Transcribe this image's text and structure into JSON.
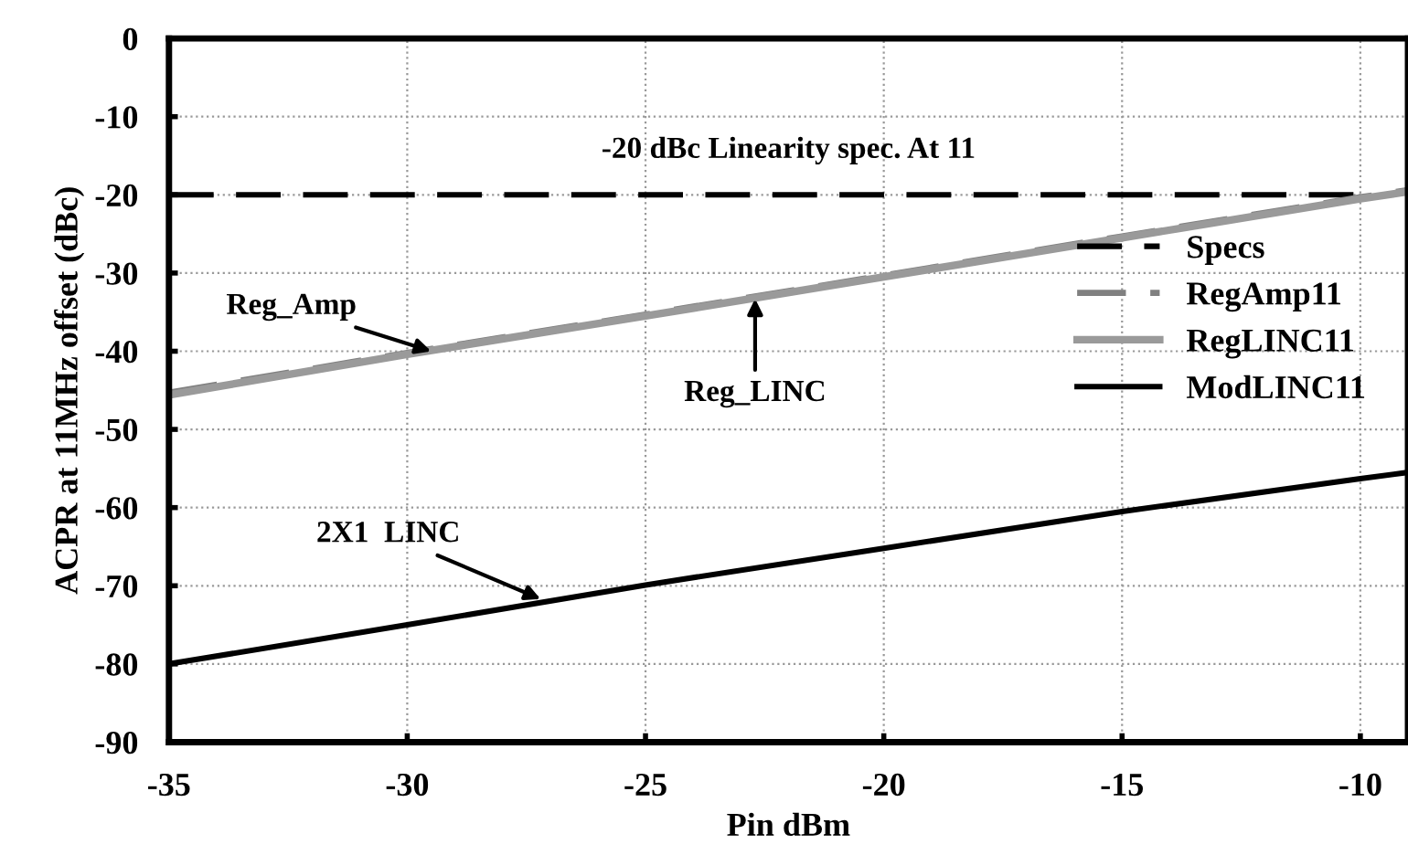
{
  "chart_data": {
    "type": "line",
    "xlabel": "Pin dBm",
    "ylabel": "ACPR at 11MHz offset (dBc)",
    "xlim": [
      -35,
      -9
    ],
    "xticks": [
      -35,
      -30,
      -25,
      -20,
      -15,
      -10
    ],
    "ylim": [
      -90,
      0
    ],
    "yticks": [
      -90,
      -80,
      -70,
      -60,
      -50,
      -40,
      -30,
      -20,
      -10,
      0
    ],
    "grid": true,
    "legend": "right",
    "marker": "none",
    "series": [
      {
        "name": "Specs",
        "color": "#000000",
        "line_style": "dashed",
        "x": [
          -35,
          -10
        ],
        "values": [
          -20,
          -20
        ]
      },
      {
        "name": "RegAmp11",
        "color": "#808080",
        "line_style": "dashed",
        "x": [
          -35,
          -30,
          -25,
          -20,
          -15,
          -10,
          -9
        ],
        "values": [
          -45.3,
          -40.2,
          -35.3,
          -30.3,
          -25.3,
          -20.3,
          -19.4
        ]
      },
      {
        "name": "RegLINC11",
        "color": "#9a9a9a",
        "line_style": "solid",
        "x": [
          -35,
          -30,
          -25,
          -20,
          -15,
          -10,
          -9
        ],
        "values": [
          -45.6,
          -40.4,
          -35.5,
          -30.5,
          -25.5,
          -20.5,
          -19.6
        ]
      },
      {
        "name": "ModLINC11",
        "color": "#000000",
        "line_style": "solid",
        "x": [
          -35,
          -30,
          -25,
          -20,
          -15,
          -10,
          -9
        ],
        "values": [
          -80,
          -75,
          -69.9,
          -65.2,
          -60.5,
          -56.3,
          -55.5
        ]
      }
    ],
    "annotations": [
      {
        "text": "-20 dBc Linearity spec. At 11",
        "x": -22,
        "y": -20
      },
      {
        "text": "Reg_Amp",
        "x": -29.5,
        "y": -40
      },
      {
        "text": "Reg_LINC",
        "x": -22.7,
        "y": -33.3
      },
      {
        "text": "2X1  LINC",
        "x": -27.2,
        "y": -71.7
      }
    ]
  }
}
